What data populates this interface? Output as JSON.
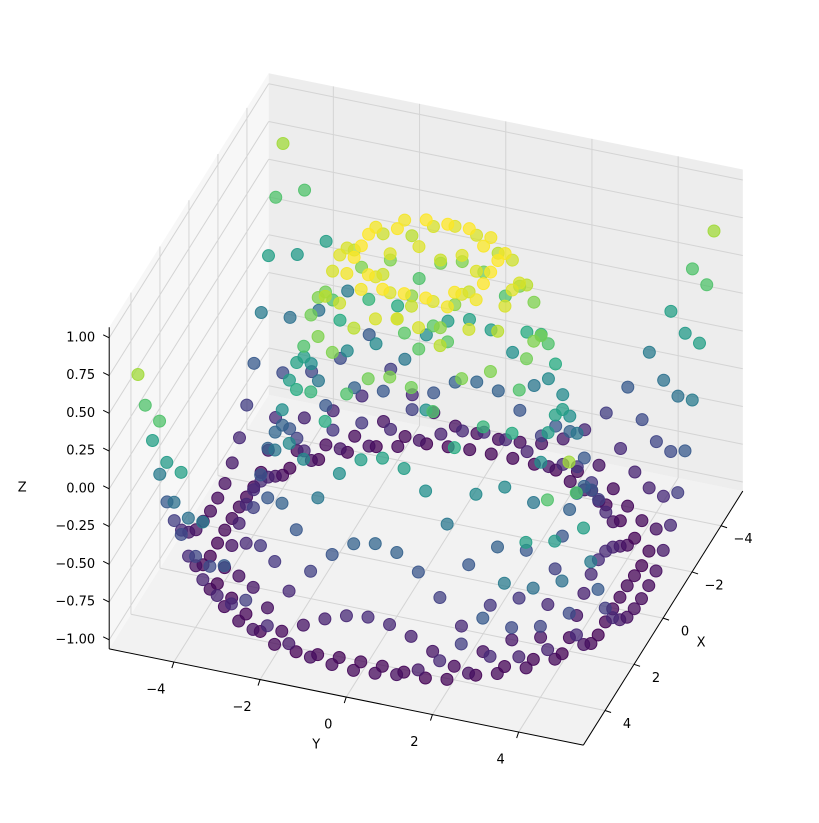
{
  "chart_data": {
    "type": "scatter3d",
    "colormap": "viridis",
    "xlabel": "X",
    "ylabel": "Y",
    "zlabel": "Z",
    "x": [
      -5,
      -4.5,
      -4,
      -3.5,
      -3,
      -2.5,
      -2,
      -1.5,
      -1,
      -0.5,
      0,
      0.5,
      1,
      1.5,
      2,
      2.5,
      3,
      3.5,
      4,
      4.5,
      5
    ],
    "y": [
      -5,
      -4.5,
      -4,
      -3.5,
      -3,
      -2.5,
      -2,
      -1.5,
      -1,
      -0.5,
      0,
      0.5,
      1,
      1.5,
      2,
      2.5,
      3,
      3.5,
      4,
      4.5,
      5
    ],
    "z": [
      [
        0.71,
        0.43,
        0.12,
        -0.18,
        -0.44,
        -0.64,
        -0.78,
        -0.87,
        -0.93,
        -0.95,
        -0.96,
        -0.95,
        -0.93,
        -0.87,
        -0.78,
        -0.64,
        -0.44,
        -0.18,
        0.12,
        0.43,
        0.71
      ],
      [
        0.43,
        0.08,
        -0.26,
        -0.55,
        -0.77,
        -0.91,
        -0.98,
        -1.0,
        -0.99,
        -0.98,
        -0.98,
        -0.98,
        -0.99,
        -1.0,
        -0.98,
        -0.91,
        -0.77,
        -0.55,
        -0.26,
        0.08,
        0.43
      ],
      [
        0.12,
        -0.26,
        -0.59,
        -0.82,
        -0.96,
        -1.0,
        -0.97,
        -0.9,
        -0.83,
        -0.78,
        -0.76,
        -0.78,
        -0.83,
        -0.9,
        -0.97,
        -1.0,
        -0.96,
        -0.82,
        -0.59,
        -0.26,
        0.12
      ],
      [
        -0.18,
        -0.55,
        -0.82,
        -0.97,
        -0.99,
        -0.92,
        -0.78,
        -0.62,
        -0.48,
        -0.38,
        -0.35,
        -0.38,
        -0.48,
        -0.62,
        -0.78,
        -0.92,
        -0.99,
        -0.97,
        -0.82,
        -0.55,
        -0.18
      ],
      [
        -0.44,
        -0.77,
        -0.96,
        -0.99,
        -0.89,
        -0.69,
        -0.45,
        -0.21,
        -0.02,
        0.1,
        0.14,
        0.1,
        -0.02,
        -0.21,
        -0.45,
        -0.69,
        -0.89,
        -0.99,
        -0.96,
        -0.77,
        -0.44
      ],
      [
        -0.64,
        -0.91,
        -1.0,
        -0.92,
        -0.69,
        -0.38,
        -0.06,
        0.22,
        0.43,
        0.56,
        0.6,
        0.56,
        0.43,
        0.22,
        -0.06,
        -0.38,
        -0.69,
        -0.92,
        -1.0,
        -0.91,
        -0.64
      ],
      [
        -0.78,
        -0.98,
        -0.97,
        -0.78,
        -0.45,
        -0.06,
        0.31,
        0.6,
        0.79,
        0.88,
        0.91,
        0.88,
        0.79,
        0.6,
        0.31,
        -0.06,
        -0.45,
        -0.78,
        -0.97,
        -0.98,
        -0.78
      ],
      [
        -0.87,
        -1.0,
        -0.9,
        -0.62,
        -0.21,
        0.22,
        0.6,
        0.85,
        0.97,
        1.0,
        1.0,
        1.0,
        0.97,
        0.85,
        0.6,
        0.22,
        -0.21,
        -0.62,
        -0.9,
        -1.0,
        -0.87
      ],
      [
        -0.93,
        -0.99,
        -0.83,
        -0.48,
        -0.02,
        0.43,
        0.79,
        0.97,
        0.99,
        0.9,
        0.84,
        0.9,
        0.99,
        0.97,
        0.79,
        0.43,
        -0.02,
        -0.48,
        -0.83,
        -0.99,
        -0.93
      ],
      [
        -0.95,
        -0.98,
        -0.78,
        -0.38,
        0.1,
        0.56,
        0.88,
        1.0,
        0.9,
        0.65,
        0.48,
        0.65,
        0.9,
        1.0,
        0.88,
        0.56,
        0.1,
        -0.38,
        -0.78,
        -0.98,
        -0.95
      ],
      [
        -0.96,
        -0.98,
        -0.76,
        -0.35,
        0.14,
        0.6,
        0.91,
        1.0,
        0.84,
        0.48,
        0,
        0.48,
        0.84,
        1.0,
        0.91,
        0.6,
        0.14,
        -0.35,
        -0.76,
        -0.98,
        -0.96
      ],
      [
        -0.95,
        -0.98,
        -0.78,
        -0.38,
        0.1,
        0.56,
        0.88,
        1.0,
        0.9,
        0.65,
        0.48,
        0.65,
        0.9,
        1.0,
        0.88,
        0.56,
        0.1,
        -0.38,
        -0.78,
        -0.98,
        -0.95
      ],
      [
        -0.93,
        -0.99,
        -0.83,
        -0.48,
        -0.02,
        0.43,
        0.79,
        0.97,
        0.99,
        0.9,
        0.84,
        0.9,
        0.99,
        0.97,
        0.79,
        0.43,
        -0.02,
        -0.48,
        -0.83,
        -0.99,
        -0.93
      ],
      [
        -0.87,
        -1.0,
        -0.9,
        -0.62,
        -0.21,
        0.22,
        0.6,
        0.85,
        0.97,
        1.0,
        1.0,
        1.0,
        0.97,
        0.85,
        0.6,
        0.22,
        -0.21,
        -0.62,
        -0.9,
        -1.0,
        -0.87
      ],
      [
        -0.78,
        -0.98,
        -0.97,
        -0.78,
        -0.45,
        -0.06,
        0.31,
        0.6,
        0.79,
        0.88,
        0.91,
        0.88,
        0.79,
        0.6,
        0.31,
        -0.06,
        -0.45,
        -0.78,
        -0.97,
        -0.98,
        -0.78
      ],
      [
        -0.64,
        -0.91,
        -1.0,
        -0.92,
        -0.69,
        -0.38,
        -0.06,
        0.22,
        0.43,
        0.56,
        0.6,
        0.56,
        0.43,
        0.22,
        -0.06,
        -0.38,
        -0.69,
        -0.92,
        -1.0,
        -0.91,
        -0.64
      ],
      [
        -0.44,
        -0.77,
        -0.96,
        -0.99,
        -0.89,
        -0.69,
        -0.45,
        -0.21,
        -0.02,
        0.1,
        0.14,
        0.1,
        -0.02,
        -0.21,
        -0.45,
        -0.69,
        -0.89,
        -0.99,
        -0.96,
        -0.77,
        -0.44
      ],
      [
        -0.18,
        -0.55,
        -0.82,
        -0.97,
        -0.99,
        -0.92,
        -0.78,
        -0.62,
        -0.48,
        -0.38,
        -0.35,
        -0.38,
        -0.48,
        -0.62,
        -0.78,
        -0.92,
        -0.99,
        -0.97,
        -0.82,
        -0.55,
        -0.18
      ],
      [
        0.12,
        -0.26,
        -0.59,
        -0.82,
        -0.96,
        -1.0,
        -0.97,
        -0.9,
        -0.83,
        -0.78,
        -0.76,
        -0.78,
        -0.83,
        -0.9,
        -0.97,
        -1.0,
        -0.96,
        -0.82,
        -0.59,
        -0.26,
        0.12
      ],
      [
        0.43,
        0.08,
        -0.26,
        -0.55,
        -0.77,
        -0.91,
        -0.98,
        -1.0,
        -0.99,
        -0.98,
        -0.98,
        -0.98,
        -0.99,
        -1.0,
        -0.98,
        -0.91,
        -0.77,
        -0.55,
        -0.26,
        0.08,
        0.43
      ],
      [
        0.71,
        0.43,
        0.12,
        -0.18,
        -0.44,
        -0.64,
        -0.78,
        -0.87,
        -0.93,
        -0.95,
        -0.96,
        -0.95,
        -0.93,
        -0.87,
        -0.78,
        -0.64,
        -0.44,
        -0.18,
        0.12,
        0.43,
        0.71
      ]
    ],
    "xlim": [
      -5.5,
      5.5
    ],
    "ylim": [
      -5.5,
      5.5
    ],
    "zlim": [
      -1.06,
      1.07
    ],
    "xticks": [
      {
        "value": -4,
        "label": "−4"
      },
      {
        "value": -2,
        "label": "−2"
      },
      0,
      2,
      4
    ],
    "yticks": [
      {
        "value": -4,
        "label": "−4"
      },
      {
        "value": -2,
        "label": "−2"
      },
      0,
      2,
      4
    ],
    "zticks": [
      {
        "value": -1,
        "label": "−1.00"
      },
      {
        "value": -0.75,
        "label": "−0.75"
      },
      {
        "value": -0.5,
        "label": "−0.50"
      },
      {
        "value": -0.25,
        "label": "−0.25"
      },
      {
        "value": 0,
        "label": "0.00"
      },
      0.25,
      {
        "value": 0.5,
        "label": "0.50"
      },
      0.75,
      {
        "value": 1,
        "label": "1.00"
      }
    ],
    "grid": true
  }
}
